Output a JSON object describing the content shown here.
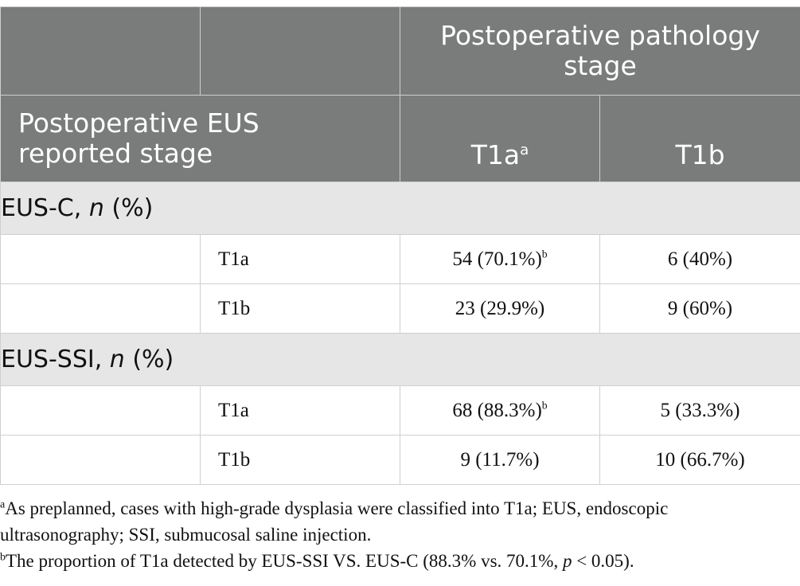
{
  "header": {
    "top_right": "Postoperative pathology stage",
    "row_label": "Postoperative EUS reported stage",
    "col1": "T1a",
    "col1_sup": "a",
    "col2": "T1b"
  },
  "groups": [
    {
      "label": "EUS-C, ",
      "n": "n",
      "pct": " (%)",
      "rows": [
        {
          "stage": "T1a",
          "v1": "54 (70.1%)",
          "v1_sup": "b",
          "v2": "6 (40%)"
        },
        {
          "stage": "T1b",
          "v1": "23 (29.9%)",
          "v1_sup": "",
          "v2": "9 (60%)"
        }
      ]
    },
    {
      "label": "EUS-SSI, ",
      "n": "n",
      "pct": " (%)",
      "rows": [
        {
          "stage": "T1a",
          "v1": "68 (88.3%)",
          "v1_sup": "b",
          "v2": "5 (33.3%)"
        },
        {
          "stage": "T1b",
          "v1": "9 (11.7%)",
          "v1_sup": "",
          "v2": "10 (66.7%)"
        }
      ]
    }
  ],
  "footnotes": {
    "a_mark": "a",
    "a_text": "As preplanned, cases with high-grade dysplasia were classified into T1a; EUS, endoscopic ultrasonography; SSI, submucosal saline injection.",
    "b_mark": "b",
    "b_text_1": "The proportion of T1a detected by EUS-SSI VS. EUS-C (88.3% vs. 70.1%, ",
    "b_p": "p",
    "b_text_2": " < 0.05)."
  }
}
